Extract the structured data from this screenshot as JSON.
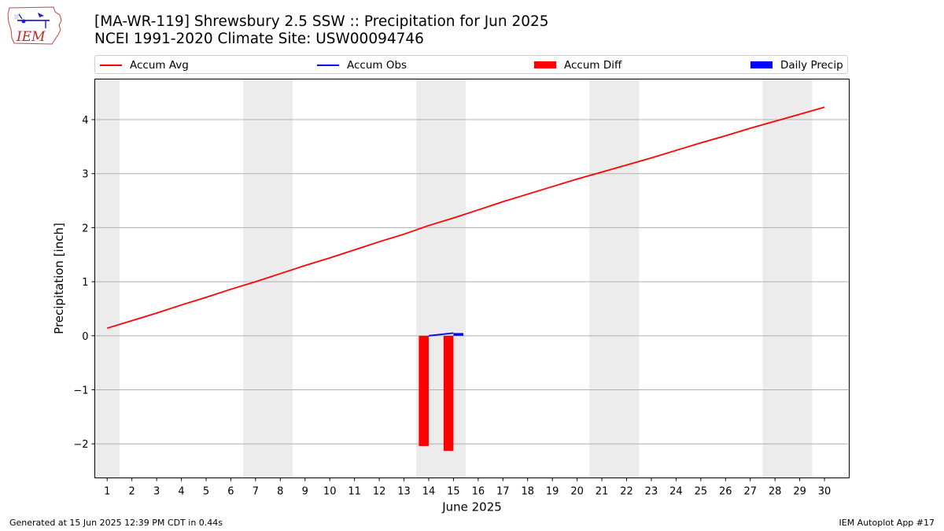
{
  "header": {
    "title_line1": "[MA-WR-119] Shrewsbury 2.5 SSW :: Precipitation for Jun 2025",
    "title_line2": "NCEI 1991-2020 Climate Site: USW00094746",
    "logo_text": "IEM"
  },
  "legend": {
    "items": [
      {
        "label": "Accum Avg",
        "color": "#ff0000",
        "kind": "line"
      },
      {
        "label": "Accum Obs",
        "color": "#0000ff",
        "kind": "line"
      },
      {
        "label": "Accum Diff",
        "color": "#ff0000",
        "kind": "box"
      },
      {
        "label": "Daily Precip",
        "color": "#0000ff",
        "kind": "box"
      }
    ]
  },
  "footer": {
    "generated": "Generated at 15 Jun 2025 12:39 PM CDT in 0.44s",
    "app": "IEM Autoplot App #17"
  },
  "chart_data": {
    "type": "line",
    "xlabel": "June 2025",
    "ylabel": "Precipitation [inch]",
    "xlim": [
      0.5,
      31.0
    ],
    "ylim": [
      -2.63,
      4.75
    ],
    "yticks": [
      -2,
      -1,
      0,
      1,
      2,
      3,
      4
    ],
    "ytick_labels": [
      "−2",
      "−1",
      "0",
      "1",
      "2",
      "3",
      "4"
    ],
    "xticks": [
      1,
      2,
      3,
      4,
      5,
      6,
      7,
      8,
      9,
      10,
      11,
      12,
      13,
      14,
      15,
      16,
      17,
      18,
      19,
      20,
      21,
      22,
      23,
      24,
      25,
      26,
      27,
      28,
      29,
      30
    ],
    "grid": "horizontal",
    "weekend_shading": [
      [
        0.5,
        1.5
      ],
      [
        6.5,
        8.5
      ],
      [
        13.5,
        15.5
      ],
      [
        20.5,
        22.5
      ],
      [
        27.5,
        29.5
      ]
    ],
    "series": [
      {
        "name": "Accum Avg",
        "kind": "line",
        "color": "#ff0000",
        "x": [
          1,
          2,
          3,
          4,
          5,
          6,
          7,
          8,
          9,
          10,
          11,
          12,
          13,
          14,
          15,
          16,
          17,
          18,
          19,
          20,
          21,
          22,
          23,
          24,
          25,
          26,
          27,
          28,
          29,
          30
        ],
        "y": [
          0.14,
          0.28,
          0.42,
          0.57,
          0.71,
          0.86,
          1.0,
          1.15,
          1.3,
          1.44,
          1.59,
          1.74,
          1.88,
          2.04,
          2.18,
          2.33,
          2.48,
          2.62,
          2.76,
          2.9,
          3.03,
          3.16,
          3.29,
          3.43,
          3.57,
          3.7,
          3.84,
          3.97,
          4.1,
          4.23
        ]
      },
      {
        "name": "Accum Obs",
        "kind": "line",
        "color": "#0000ff",
        "x": [
          14,
          15
        ],
        "y": [
          0.0,
          0.05
        ]
      },
      {
        "name": "Accum Diff",
        "kind": "bar",
        "color": "#ff0000",
        "x": [
          13.8,
          14.8
        ],
        "y": [
          -2.04,
          -2.13
        ]
      },
      {
        "name": "Daily Precip",
        "kind": "bar",
        "color": "#0000ff",
        "x": [
          15.2
        ],
        "y": [
          0.05
        ]
      }
    ]
  }
}
